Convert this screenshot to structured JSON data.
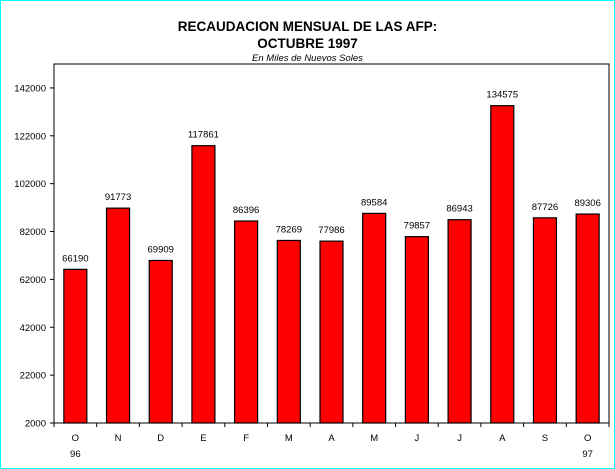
{
  "chart_data": {
    "type": "bar",
    "title_lines": [
      "RECAUDACION MENSUAL DE LAS AFP:",
      "OCTUBRE 1997"
    ],
    "subtitle": "En Miles de Nuevos Soles",
    "categories": [
      "O",
      "N",
      "D",
      "E",
      "F",
      "M",
      "A",
      "M",
      "J",
      "J",
      "A",
      "S",
      "O"
    ],
    "category_sublabels": [
      "96",
      "",
      "",
      "",
      "",
      "",
      "",
      "",
      "",
      "",
      "",
      "",
      "97"
    ],
    "values": [
      66190,
      91773,
      69909,
      117861,
      86396,
      78269,
      77986,
      89584,
      79857,
      86943,
      134575,
      87726,
      89306
    ],
    "data_labels": [
      "66190",
      "91773",
      "69909",
      "117861",
      "86396",
      "78269",
      "77986",
      "89584",
      "79857",
      "86943",
      "134575",
      "87726",
      "89306"
    ],
    "ylim": [
      2000,
      152000
    ],
    "y_ticks": [
      2000,
      22000,
      42000,
      62000,
      82000,
      102000,
      122000,
      142000
    ],
    "y_tick_labels": [
      "2000",
      "22000",
      "42000",
      "62000",
      "82000",
      "102000",
      "122000",
      "142000"
    ],
    "grid": false,
    "legend": "none",
    "bar_color": "#ff0000",
    "bar_stroke": "#000000"
  },
  "colors": {
    "frame": "#00ffff",
    "background": "#ffffff"
  }
}
